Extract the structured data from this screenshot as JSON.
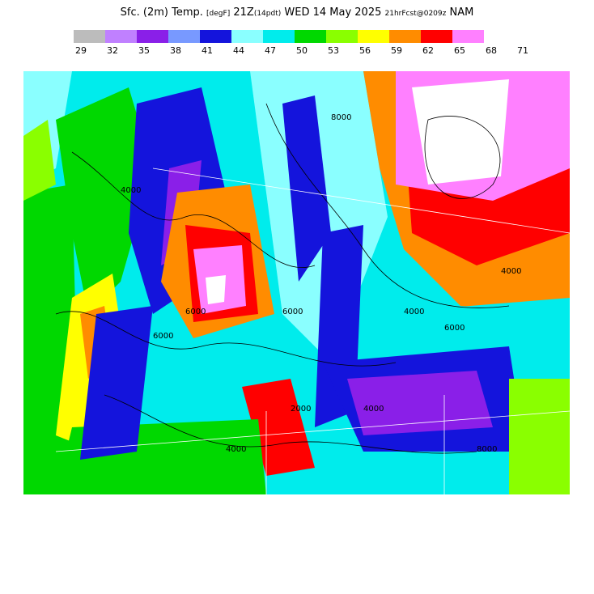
{
  "title": {
    "main": "Sfc. (2m) Temp.",
    "units": "[degF]",
    "valid_hour": "21Z",
    "forecast_pdt": "(14pdt)",
    "valid_date": "WED 14 May 2025",
    "run_info": "21hrFcst@0209z",
    "model": "NAM"
  },
  "legend": {
    "colors": [
      "#bcbcbc",
      "#c080ff",
      "#8a1fe8",
      "#7899ff",
      "#1414dc",
      "#8affff",
      "#00ecec",
      "#00d800",
      "#8aff00",
      "#ffff00",
      "#ff8c00",
      "#ff0000",
      "#ff80ff"
    ],
    "ticks": [
      "29",
      "32",
      "35",
      "38",
      "41",
      "44",
      "47",
      "50",
      "53",
      "56",
      "59",
      "62",
      "65",
      "68",
      "71"
    ]
  },
  "map": {
    "description_colors": {
      "cold_high_terrain": "#1414dc",
      "very_cold": "#8a1fe8",
      "mild": "#00d800",
      "warm": "#ff8c00",
      "hot": "#ff0000",
      "very_hot": "#ff80ff"
    },
    "contour_labels": [
      "4000",
      "6000",
      "8000",
      "4000",
      "6000",
      "4000",
      "8000",
      "6000",
      "4000",
      "4000",
      "2000",
      "6000"
    ]
  }
}
